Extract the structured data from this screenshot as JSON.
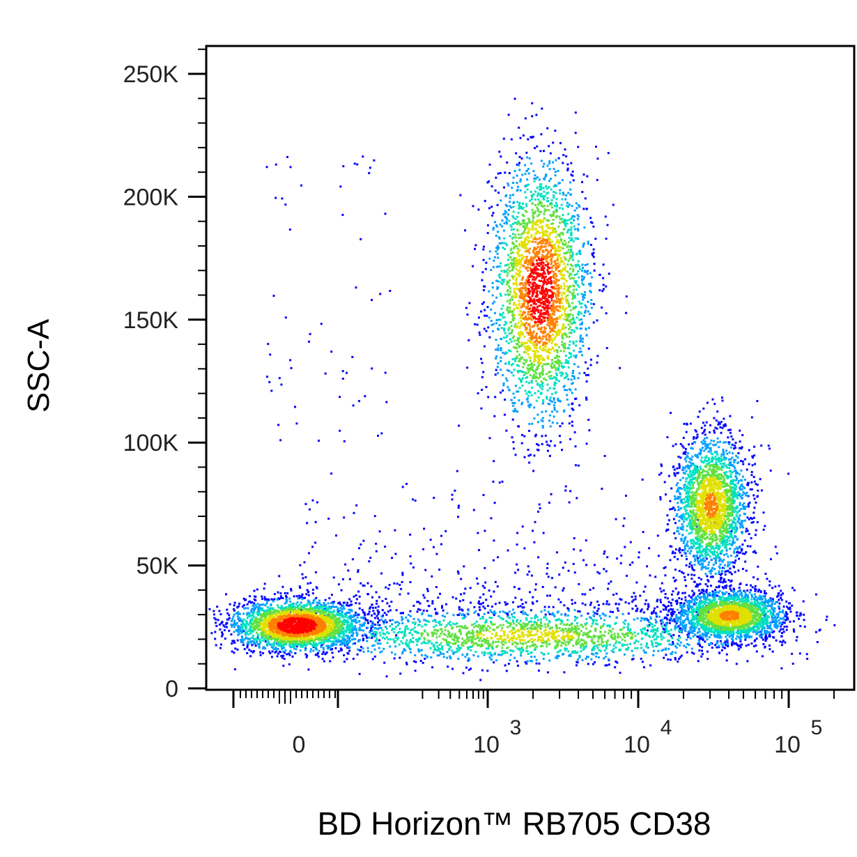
{
  "chart_data": {
    "type": "scatter",
    "plot_style": "pseudocolor density dot plot",
    "xlabel": "BD Horizon™ RB705 CD38",
    "ylabel": "SSC-A",
    "x_scale": "biexponential",
    "y_scale": "linear",
    "ylim": [
      0,
      262144
    ],
    "y_ticks": [
      {
        "value": 0,
        "label": "0"
      },
      {
        "value": 50000,
        "label": "50K"
      },
      {
        "value": 100000,
        "label": "100K"
      },
      {
        "value": 150000,
        "label": "150K"
      },
      {
        "value": 200000,
        "label": "200K"
      },
      {
        "value": 250000,
        "label": "250K"
      }
    ],
    "x_ticks": [
      {
        "value": 0,
        "base": "0",
        "exp": ""
      },
      {
        "value": 1000,
        "base": "10",
        "exp": "3"
      },
      {
        "value": 10000,
        "base": "10",
        "exp": "4"
      },
      {
        "value": 100000,
        "base": "10",
        "exp": "5"
      }
    ],
    "density_colors": [
      "#0000ff",
      "#00a0ff",
      "#00e0c0",
      "#60e040",
      "#e0e000",
      "#ff8000",
      "#ff0000"
    ],
    "populations": [
      {
        "x_center": 0,
        "y_center": 26000,
        "x_spread_log": 0.35,
        "y_spread": 5000,
        "peak_density": 1.0
      },
      {
        "x_center": 1800,
        "y_center": 22000,
        "x_spread_log": 0.75,
        "y_spread": 5500,
        "peak_density": 0.55
      },
      {
        "x_center": 2200,
        "y_center": 162000,
        "x_spread_log": 0.16,
        "y_spread": 26000,
        "peak_density": 0.95
      },
      {
        "x_center": 30000,
        "y_center": 75000,
        "x_spread_log": 0.12,
        "y_spread": 14000,
        "peak_density": 0.7
      },
      {
        "x_center": 40000,
        "y_center": 30000,
        "x_spread_log": 0.18,
        "y_spread": 5000,
        "peak_density": 0.7
      }
    ]
  }
}
